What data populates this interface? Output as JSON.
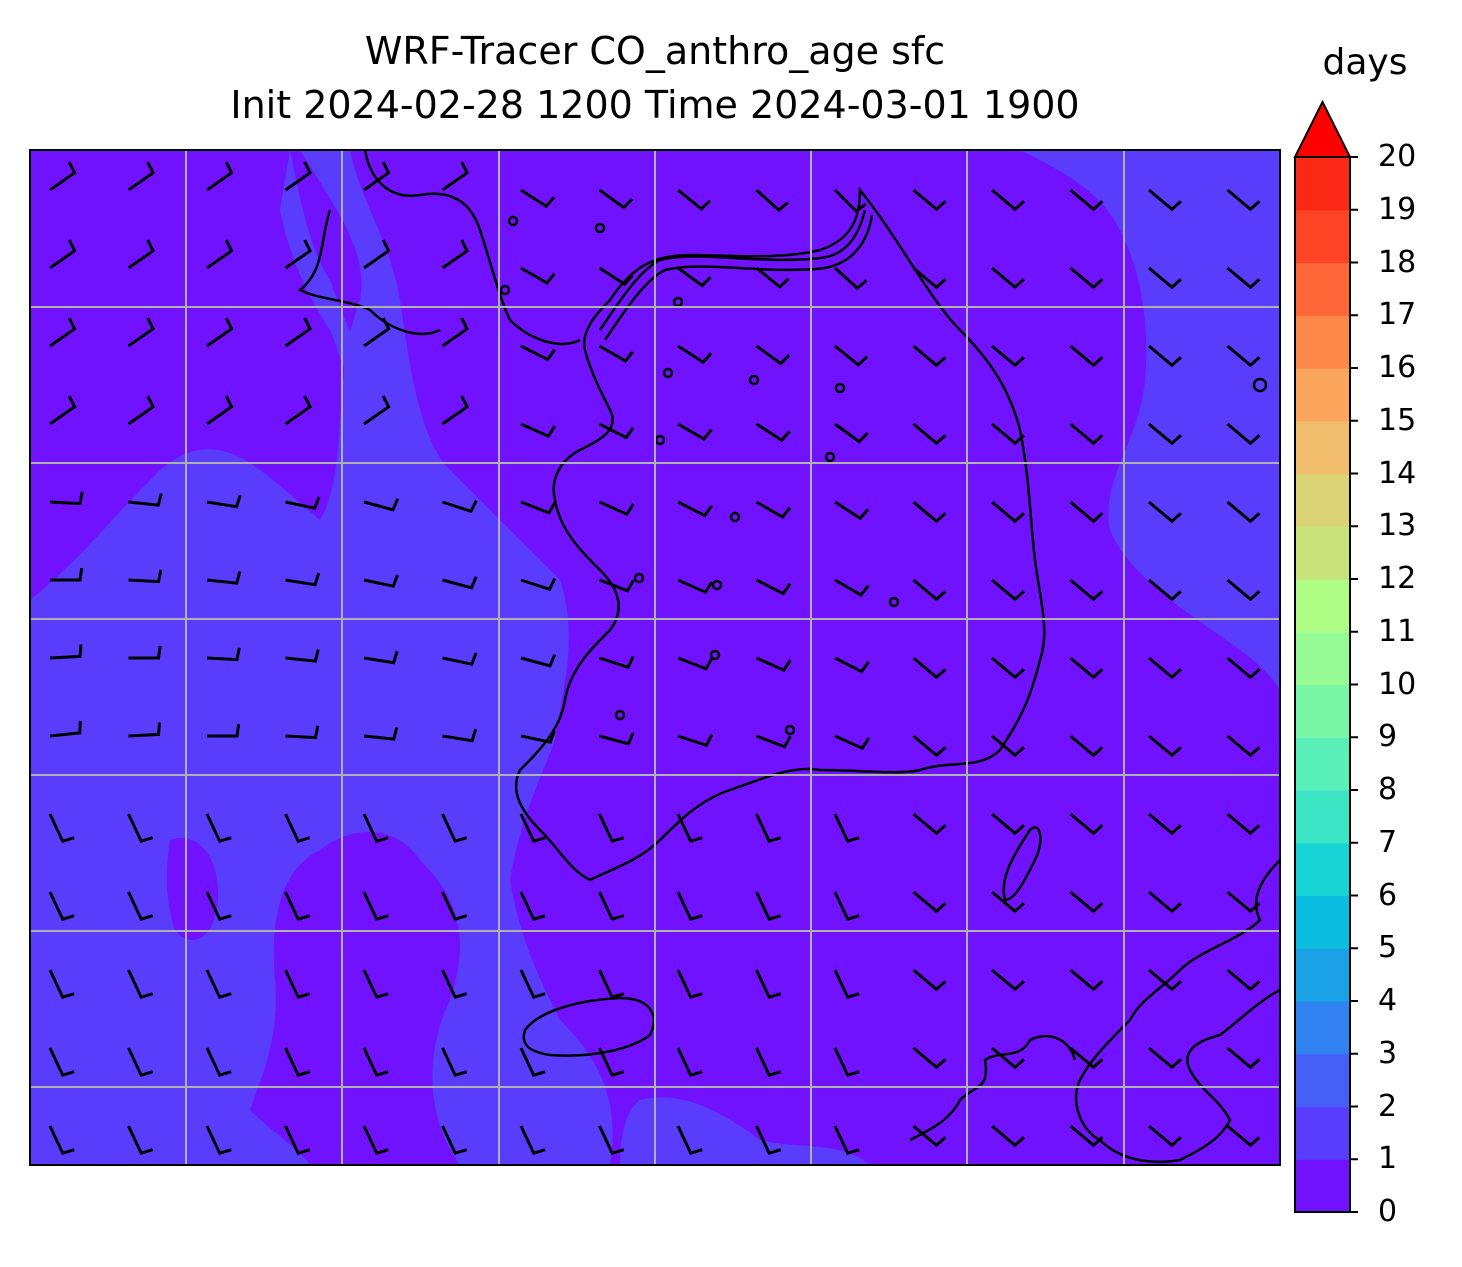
{
  "title_line1": "WRF-Tracer CO_anthro_age sfc",
  "title_line2": "Init 2024-02-28 1200 Time 2024-03-01 1900",
  "colorbar": {
    "unit": "days",
    "ticks": [
      "0",
      "1",
      "2",
      "3",
      "4",
      "5",
      "6",
      "7",
      "8",
      "9",
      "10",
      "11",
      "12",
      "13",
      "14",
      "15",
      "16",
      "17",
      "18",
      "19",
      "20"
    ],
    "extend": "max",
    "extend_color": "#ff0000",
    "colors": [
      "#7012fe",
      "#5a3cfc",
      "#4660f7",
      "#2f82f0",
      "#1aa1e6",
      "#0bbde0",
      "#19d4d4",
      "#3be5c6",
      "#58f0b8",
      "#7af7a6",
      "#96fb95",
      "#b0fd85",
      "#c8e27a",
      "#dcd276",
      "#efbd6c",
      "#fca55c",
      "#fe874a",
      "#ff6638",
      "#fd4525",
      "#fb2815"
    ]
  },
  "gridlines": "on",
  "wind_barbs": "on",
  "map": {
    "background_color": "#7012fe",
    "age_band_color": "#5a3cfc"
  }
}
